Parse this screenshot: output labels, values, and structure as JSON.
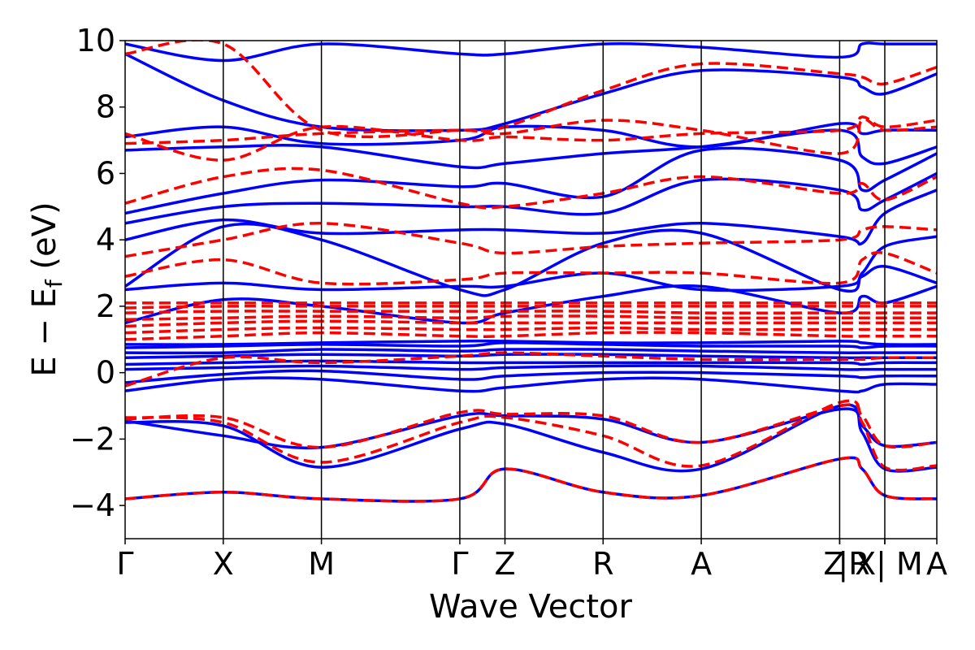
{
  "chart_data": {
    "type": "line",
    "xlabel": "Wave Vector",
    "ylabel_main": "E − E",
    "ylabel_sub": "f",
    "ylabel_unit": " (eV)",
    "ylim": [
      -5,
      10
    ],
    "yticks": [
      {
        "value": 10,
        "label": "10"
      },
      {
        "value": 8,
        "label": "8"
      },
      {
        "value": 6,
        "label": "6"
      },
      {
        "value": 4,
        "label": "4"
      },
      {
        "value": 2,
        "label": "2"
      },
      {
        "value": 0,
        "label": "0"
      },
      {
        "value": -2,
        "label": "−2"
      },
      {
        "value": -4,
        "label": "−4"
      }
    ],
    "xlim": [
      0,
      8.27
    ],
    "kpoints": [
      {
        "label": "Γ",
        "x": 0.0
      },
      {
        "label": "X",
        "x": 1.0
      },
      {
        "label": "M",
        "x": 2.0
      },
      {
        "label": "Γ",
        "x": 3.41
      },
      {
        "label": "Z",
        "x": 3.87
      },
      {
        "label": "R",
        "x": 4.87
      },
      {
        "label": "A",
        "x": 5.87
      },
      {
        "label": "Z",
        "x": 7.28
      },
      {
        "label": "|R",
        "x": 7.28
      },
      {
        "label": "X|",
        "x": 7.74
      },
      {
        "label": "M",
        "x": 7.74
      },
      {
        "label": "A",
        "x": 8.27
      }
    ],
    "series": [
      {
        "style": "solid",
        "color": "#0000ff",
        "bands": [
          [
            -3.8,
            -3.6,
            -3.8,
            -3.8,
            -2.9,
            -3.6,
            -3.7,
            -2.6,
            -2.9,
            -3.7,
            -3.8
          ],
          [
            -1.45,
            -1.9,
            -2.25,
            -1.3,
            -1.3,
            -1.4,
            -2.1,
            -1.1,
            -1.6,
            -2.2,
            -2.1
          ],
          [
            -1.5,
            -1.6,
            -2.85,
            -1.7,
            -1.55,
            -2.4,
            -2.9,
            -1.0,
            -1.8,
            -2.9,
            -2.85
          ],
          [
            -0.55,
            -0.2,
            -0.2,
            -0.55,
            -0.45,
            -0.2,
            -0.2,
            -0.55,
            -0.55,
            -0.35,
            -0.35
          ],
          [
            -0.3,
            -0.05,
            0.05,
            -0.2,
            -0.1,
            0.0,
            0.0,
            -0.1,
            -0.15,
            -0.1,
            -0.1
          ],
          [
            0.1,
            0.15,
            0.2,
            0.1,
            0.15,
            0.2,
            0.2,
            0.1,
            0.1,
            0.1,
            0.1
          ],
          [
            0.25,
            0.3,
            0.35,
            0.3,
            0.3,
            0.3,
            0.3,
            0.3,
            0.25,
            0.3,
            0.3
          ],
          [
            0.45,
            0.5,
            0.55,
            0.5,
            0.55,
            0.55,
            0.5,
            0.45,
            0.45,
            0.45,
            0.45
          ],
          [
            0.6,
            0.6,
            0.7,
            0.65,
            0.7,
            0.7,
            0.65,
            0.6,
            0.6,
            0.6,
            0.6
          ],
          [
            0.75,
            0.8,
            0.85,
            0.8,
            0.9,
            0.85,
            0.8,
            0.8,
            0.75,
            0.8,
            0.8
          ],
          [
            0.85,
            0.85,
            0.9,
            0.95,
            0.95,
            0.9,
            0.9,
            0.95,
            0.9,
            0.85,
            0.85
          ],
          [
            1.5,
            2.2,
            2.0,
            1.5,
            1.8,
            2.3,
            2.6,
            1.8,
            2.3,
            2.1,
            2.6
          ],
          [
            2.5,
            2.7,
            2.5,
            2.6,
            2.6,
            3.0,
            2.5,
            2.6,
            2.9,
            3.2,
            2.7
          ],
          [
            2.6,
            4.4,
            4.0,
            2.5,
            2.5,
            3.9,
            4.2,
            2.5,
            3.0,
            3.8,
            4.1
          ],
          [
            4.0,
            4.6,
            4.2,
            4.3,
            4.3,
            4.2,
            4.5,
            4.1,
            3.9,
            4.8,
            5.5
          ],
          [
            4.5,
            5.0,
            5.1,
            5.0,
            5.0,
            4.8,
            5.8,
            5.5,
            4.9,
            5.2,
            6.0
          ],
          [
            4.8,
            5.4,
            5.8,
            5.6,
            5.7,
            5.3,
            6.7,
            6.4,
            5.5,
            5.8,
            6.6
          ],
          [
            6.7,
            6.8,
            6.8,
            6.2,
            6.3,
            6.6,
            6.8,
            7.3,
            6.5,
            6.3,
            6.8
          ],
          [
            7.1,
            7.4,
            6.9,
            7.0,
            7.4,
            7.3,
            6.8,
            7.5,
            7.2,
            7.3,
            7.3
          ],
          [
            9.6,
            8.2,
            7.4,
            7.3,
            7.5,
            8.4,
            9.1,
            8.9,
            8.6,
            8.4,
            9.0
          ],
          [
            9.9,
            9.4,
            9.9,
            9.6,
            9.6,
            9.9,
            9.8,
            9.5,
            9.9,
            9.9,
            9.9
          ]
        ]
      },
      {
        "style": "dashed",
        "color": "#ff0000",
        "bands": [
          [
            -3.8,
            -3.6,
            -3.8,
            -3.8,
            -2.9,
            -3.6,
            -3.7,
            -2.6,
            -2.9,
            -3.7,
            -3.8
          ],
          [
            -1.4,
            -1.35,
            -2.25,
            -1.2,
            -1.25,
            -1.3,
            -2.1,
            -1.0,
            -1.3,
            -2.2,
            -2.1
          ],
          [
            -1.35,
            -1.5,
            -2.7,
            -1.5,
            -1.35,
            -1.9,
            -2.8,
            -0.9,
            -1.5,
            -2.85,
            -2.8
          ],
          [
            -0.4,
            0.45,
            0.3,
            0.5,
            0.6,
            0.5,
            0.4,
            0.4,
            0.4,
            0.45,
            0.45
          ],
          [
            1.0,
            1.1,
            1.2,
            1.1,
            1.1,
            1.2,
            1.2,
            1.1,
            1.1,
            1.1,
            1.1
          ],
          [
            1.2,
            1.3,
            1.35,
            1.3,
            1.3,
            1.35,
            1.3,
            1.3,
            1.3,
            1.3,
            1.3
          ],
          [
            1.4,
            1.5,
            1.55,
            1.5,
            1.5,
            1.5,
            1.5,
            1.5,
            1.5,
            1.5,
            1.5
          ],
          [
            1.6,
            1.65,
            1.7,
            1.65,
            1.7,
            1.7,
            1.65,
            1.65,
            1.65,
            1.65,
            1.65
          ],
          [
            1.8,
            1.85,
            1.85,
            1.85,
            1.85,
            1.85,
            1.8,
            1.8,
            1.8,
            1.8,
            1.8
          ],
          [
            1.95,
            2.0,
            2.0,
            2.0,
            2.0,
            2.0,
            2.0,
            2.0,
            2.0,
            2.0,
            2.0
          ],
          [
            2.1,
            2.1,
            2.1,
            2.1,
            2.1,
            2.1,
            2.1,
            2.1,
            2.1,
            2.1,
            2.1
          ],
          [
            2.9,
            3.4,
            2.7,
            2.8,
            3.0,
            3.0,
            3.0,
            2.7,
            3.4,
            3.6,
            3.0
          ],
          [
            3.5,
            4.0,
            4.5,
            3.9,
            3.6,
            3.8,
            3.9,
            4.0,
            4.3,
            4.4,
            4.3
          ],
          [
            5.1,
            5.9,
            6.1,
            5.1,
            5.0,
            5.4,
            5.9,
            5.4,
            5.7,
            5.2,
            5.9
          ],
          [
            6.9,
            7.0,
            7.2,
            7.3,
            7.2,
            7.6,
            7.3,
            6.6,
            7.6,
            7.3,
            7.4
          ],
          [
            7.2,
            6.4,
            7.4,
            7.0,
            7.1,
            7.0,
            7.2,
            7.3,
            7.7,
            7.4,
            7.6
          ],
          [
            9.6,
            9.9,
            7.3,
            7.3,
            7.4,
            8.5,
            9.3,
            9.0,
            8.9,
            8.7,
            9.2
          ]
        ]
      }
    ]
  }
}
